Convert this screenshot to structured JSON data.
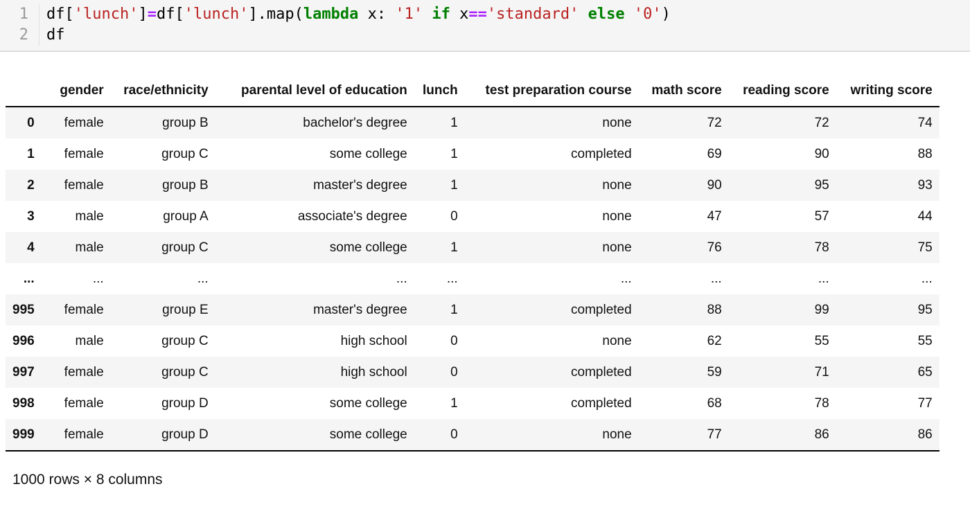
{
  "code_cell": {
    "lines": [
      {
        "number": "1",
        "segments": [
          {
            "text": "df[",
            "type": "plain"
          },
          {
            "text": "'lunch'",
            "type": "string"
          },
          {
            "text": "]",
            "type": "plain"
          },
          {
            "text": "=",
            "type": "operator"
          },
          {
            "text": "df[",
            "type": "plain"
          },
          {
            "text": "'lunch'",
            "type": "string"
          },
          {
            "text": "].map(",
            "type": "plain"
          },
          {
            "text": "lambda",
            "type": "keyword"
          },
          {
            "text": " x: ",
            "type": "plain"
          },
          {
            "text": "'1'",
            "type": "string"
          },
          {
            "text": " ",
            "type": "plain"
          },
          {
            "text": "if",
            "type": "keyword"
          },
          {
            "text": " x",
            "type": "plain"
          },
          {
            "text": "==",
            "type": "operator"
          },
          {
            "text": "'standard'",
            "type": "string"
          },
          {
            "text": " ",
            "type": "plain"
          },
          {
            "text": "else",
            "type": "keyword"
          },
          {
            "text": " ",
            "type": "plain"
          },
          {
            "text": "'0'",
            "type": "string"
          },
          {
            "text": ")",
            "type": "plain"
          }
        ]
      },
      {
        "number": "2",
        "segments": [
          {
            "text": "df",
            "type": "plain"
          }
        ]
      }
    ],
    "token_colors": {
      "plain": "#000000",
      "string": "#BA2121",
      "keyword": "#008000",
      "operator": "#AA22FF"
    }
  },
  "table": {
    "index_header": "",
    "columns": [
      "gender",
      "race/ethnicity",
      "parental level of education",
      "lunch",
      "test preparation course",
      "math score",
      "reading score",
      "writing score"
    ],
    "rows": [
      {
        "index": "0",
        "cells": [
          "female",
          "group B",
          "bachelor's degree",
          "1",
          "none",
          "72",
          "72",
          "74"
        ]
      },
      {
        "index": "1",
        "cells": [
          "female",
          "group C",
          "some college",
          "1",
          "completed",
          "69",
          "90",
          "88"
        ]
      },
      {
        "index": "2",
        "cells": [
          "female",
          "group B",
          "master's degree",
          "1",
          "none",
          "90",
          "95",
          "93"
        ]
      },
      {
        "index": "3",
        "cells": [
          "male",
          "group A",
          "associate's degree",
          "0",
          "none",
          "47",
          "57",
          "44"
        ]
      },
      {
        "index": "4",
        "cells": [
          "male",
          "group C",
          "some college",
          "1",
          "none",
          "76",
          "78",
          "75"
        ]
      },
      {
        "index": "...",
        "cells": [
          "...",
          "...",
          "...",
          "...",
          "...",
          "...",
          "...",
          "..."
        ]
      },
      {
        "index": "995",
        "cells": [
          "female",
          "group E",
          "master's degree",
          "1",
          "completed",
          "88",
          "99",
          "95"
        ]
      },
      {
        "index": "996",
        "cells": [
          "male",
          "group C",
          "high school",
          "0",
          "none",
          "62",
          "55",
          "55"
        ]
      },
      {
        "index": "997",
        "cells": [
          "female",
          "group C",
          "high school",
          "0",
          "completed",
          "59",
          "71",
          "65"
        ]
      },
      {
        "index": "998",
        "cells": [
          "female",
          "group D",
          "some college",
          "1",
          "completed",
          "68",
          "78",
          "77"
        ]
      },
      {
        "index": "999",
        "cells": [
          "female",
          "group D",
          "some college",
          "0",
          "none",
          "77",
          "86",
          "86"
        ]
      }
    ],
    "footer": "1000 rows × 8 columns",
    "stripe_color": "#f5f5f5"
  }
}
